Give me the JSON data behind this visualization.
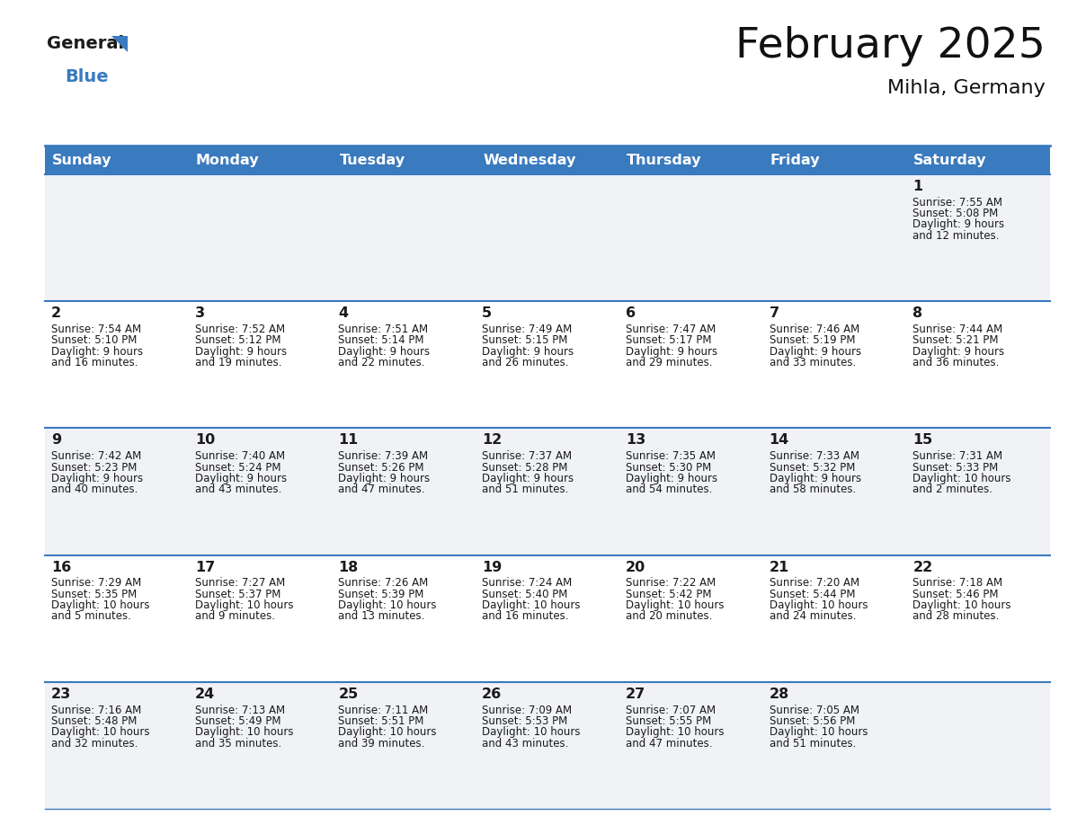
{
  "title": "February 2025",
  "subtitle": "Mihla, Germany",
  "header_bg": "#3a7abf",
  "header_text": "#ffffff",
  "row_bg_odd": "#f0f2f5",
  "row_bg_even": "#ffffff",
  "cell_border": "#3a7abf",
  "day_headers": [
    "Sunday",
    "Monday",
    "Tuesday",
    "Wednesday",
    "Thursday",
    "Friday",
    "Saturday"
  ],
  "days": [
    {
      "day": 1,
      "col": 6,
      "row": 0,
      "sunrise": "7:55 AM",
      "sunset": "5:08 PM",
      "daylight": "9 hours and 12 minutes"
    },
    {
      "day": 2,
      "col": 0,
      "row": 1,
      "sunrise": "7:54 AM",
      "sunset": "5:10 PM",
      "daylight": "9 hours and 16 minutes"
    },
    {
      "day": 3,
      "col": 1,
      "row": 1,
      "sunrise": "7:52 AM",
      "sunset": "5:12 PM",
      "daylight": "9 hours and 19 minutes"
    },
    {
      "day": 4,
      "col": 2,
      "row": 1,
      "sunrise": "7:51 AM",
      "sunset": "5:14 PM",
      "daylight": "9 hours and 22 minutes"
    },
    {
      "day": 5,
      "col": 3,
      "row": 1,
      "sunrise": "7:49 AM",
      "sunset": "5:15 PM",
      "daylight": "9 hours and 26 minutes"
    },
    {
      "day": 6,
      "col": 4,
      "row": 1,
      "sunrise": "7:47 AM",
      "sunset": "5:17 PM",
      "daylight": "9 hours and 29 minutes"
    },
    {
      "day": 7,
      "col": 5,
      "row": 1,
      "sunrise": "7:46 AM",
      "sunset": "5:19 PM",
      "daylight": "9 hours and 33 minutes"
    },
    {
      "day": 8,
      "col": 6,
      "row": 1,
      "sunrise": "7:44 AM",
      "sunset": "5:21 PM",
      "daylight": "9 hours and 36 minutes"
    },
    {
      "day": 9,
      "col": 0,
      "row": 2,
      "sunrise": "7:42 AM",
      "sunset": "5:23 PM",
      "daylight": "9 hours and 40 minutes"
    },
    {
      "day": 10,
      "col": 1,
      "row": 2,
      "sunrise": "7:40 AM",
      "sunset": "5:24 PM",
      "daylight": "9 hours and 43 minutes"
    },
    {
      "day": 11,
      "col": 2,
      "row": 2,
      "sunrise": "7:39 AM",
      "sunset": "5:26 PM",
      "daylight": "9 hours and 47 minutes"
    },
    {
      "day": 12,
      "col": 3,
      "row": 2,
      "sunrise": "7:37 AM",
      "sunset": "5:28 PM",
      "daylight": "9 hours and 51 minutes"
    },
    {
      "day": 13,
      "col": 4,
      "row": 2,
      "sunrise": "7:35 AM",
      "sunset": "5:30 PM",
      "daylight": "9 hours and 54 minutes"
    },
    {
      "day": 14,
      "col": 5,
      "row": 2,
      "sunrise": "7:33 AM",
      "sunset": "5:32 PM",
      "daylight": "9 hours and 58 minutes"
    },
    {
      "day": 15,
      "col": 6,
      "row": 2,
      "sunrise": "7:31 AM",
      "sunset": "5:33 PM",
      "daylight": "10 hours and 2 minutes"
    },
    {
      "day": 16,
      "col": 0,
      "row": 3,
      "sunrise": "7:29 AM",
      "sunset": "5:35 PM",
      "daylight": "10 hours and 5 minutes"
    },
    {
      "day": 17,
      "col": 1,
      "row": 3,
      "sunrise": "7:27 AM",
      "sunset": "5:37 PM",
      "daylight": "10 hours and 9 minutes"
    },
    {
      "day": 18,
      "col": 2,
      "row": 3,
      "sunrise": "7:26 AM",
      "sunset": "5:39 PM",
      "daylight": "10 hours and 13 minutes"
    },
    {
      "day": 19,
      "col": 3,
      "row": 3,
      "sunrise": "7:24 AM",
      "sunset": "5:40 PM",
      "daylight": "10 hours and 16 minutes"
    },
    {
      "day": 20,
      "col": 4,
      "row": 3,
      "sunrise": "7:22 AM",
      "sunset": "5:42 PM",
      "daylight": "10 hours and 20 minutes"
    },
    {
      "day": 21,
      "col": 5,
      "row": 3,
      "sunrise": "7:20 AM",
      "sunset": "5:44 PM",
      "daylight": "10 hours and 24 minutes"
    },
    {
      "day": 22,
      "col": 6,
      "row": 3,
      "sunrise": "7:18 AM",
      "sunset": "5:46 PM",
      "daylight": "10 hours and 28 minutes"
    },
    {
      "day": 23,
      "col": 0,
      "row": 4,
      "sunrise": "7:16 AM",
      "sunset": "5:48 PM",
      "daylight": "10 hours and 32 minutes"
    },
    {
      "day": 24,
      "col": 1,
      "row": 4,
      "sunrise": "7:13 AM",
      "sunset": "5:49 PM",
      "daylight": "10 hours and 35 minutes"
    },
    {
      "day": 25,
      "col": 2,
      "row": 4,
      "sunrise": "7:11 AM",
      "sunset": "5:51 PM",
      "daylight": "10 hours and 39 minutes"
    },
    {
      "day": 26,
      "col": 3,
      "row": 4,
      "sunrise": "7:09 AM",
      "sunset": "5:53 PM",
      "daylight": "10 hours and 43 minutes"
    },
    {
      "day": 27,
      "col": 4,
      "row": 4,
      "sunrise": "7:07 AM",
      "sunset": "5:55 PM",
      "daylight": "10 hours and 47 minutes"
    },
    {
      "day": 28,
      "col": 5,
      "row": 4,
      "sunrise": "7:05 AM",
      "sunset": "5:56 PM",
      "daylight": "10 hours and 51 minutes"
    }
  ],
  "num_rows": 5,
  "title_fontsize": 34,
  "subtitle_fontsize": 16,
  "header_fontsize": 11.5,
  "day_num_fontsize": 11.5,
  "cell_text_fontsize": 8.5,
  "logo_general_fontsize": 14,
  "logo_blue_fontsize": 14
}
